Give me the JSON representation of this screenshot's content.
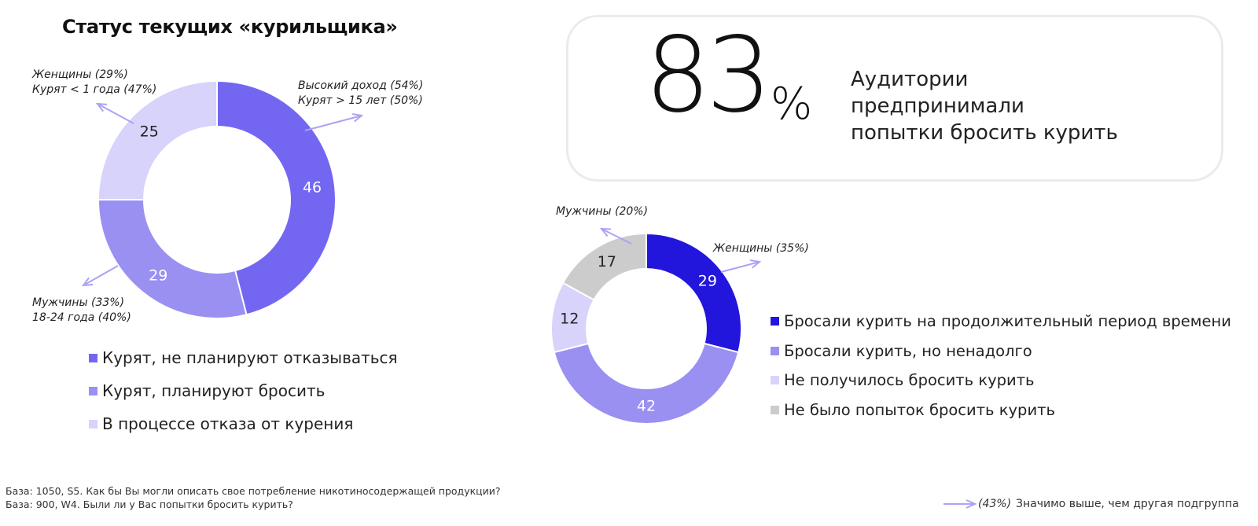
{
  "title": "Статус текущих «курильщика»",
  "chart_data": [
    {
      "type": "pie",
      "variant": "donut",
      "segments": [
        {
          "label": "Курят, не планируют отказываться",
          "value": 46,
          "color": "#7367f2"
        },
        {
          "label": "Курят, планируют бросить",
          "value": 29,
          "color": "#9990f2"
        },
        {
          "label": "В процессе отказа от курения",
          "value": 25,
          "color": "#d7d3fa"
        }
      ],
      "annotations": [
        {
          "lines": [
            "Женщины (29%)",
            "Курят < 1 года (47%)"
          ]
        },
        {
          "lines": [
            "Высокий доход (54%)",
            "Курят > 15 лет  (50%)"
          ]
        },
        {
          "lines": [
            "Мужчины (33%)",
            "18-24 года (40%)"
          ]
        }
      ]
    },
    {
      "type": "pie",
      "variant": "donut",
      "segments": [
        {
          "label": "Бросали курить на продолжительный период времени",
          "value": 29,
          "color": "#2216dc"
        },
        {
          "label": "Бросали курить, но ненадолго",
          "value": 42,
          "color": "#9990f2"
        },
        {
          "label": "Не получилось бросить курить",
          "value": 12,
          "color": "#d7d3fa"
        },
        {
          "label": "Не было попыток бросить курить",
          "value": 17,
          "color": "#cccccc"
        }
      ],
      "annotations": [
        {
          "lines": [
            "Мужчины (20%)"
          ]
        },
        {
          "lines": [
            "Женщины (35%)"
          ]
        }
      ]
    }
  ],
  "stat": {
    "number": "83",
    "unit": "%",
    "text_lines": [
      "Аудитории",
      "предпринимали",
      "попытки бросить курить"
    ]
  },
  "footnotes": [
    "База: 1050, S5. Как бы Вы могли описать свое потребление никотиносодержащей продукции?",
    "База: 900, W4. Были ли у Вас попытки бросить курить?"
  ],
  "note": {
    "example": "(43%)",
    "text": "Значимо выше, чем другая подгруппа"
  },
  "colors": {
    "arrow": "#aaa3f5",
    "card_border": "#ebebeb"
  }
}
